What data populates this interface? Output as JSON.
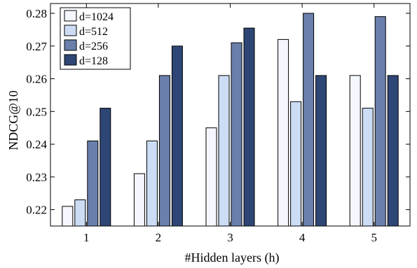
{
  "chart_data": {
    "type": "bar",
    "title": "",
    "xlabel": "#Hidden layers (h)",
    "ylabel": "NDCG@10",
    "categories": [
      "1",
      "2",
      "3",
      "4",
      "5"
    ],
    "ylim": [
      0.215,
      0.283
    ],
    "yticks": [
      "0.22",
      "0.23",
      "0.24",
      "0.25",
      "0.26",
      "0.27",
      "0.28"
    ],
    "legend_position": "top-left",
    "grid": false,
    "series": [
      {
        "name": "d=1024",
        "color": "#f4f7fd",
        "values": [
          0.221,
          0.231,
          0.245,
          0.272,
          0.261
        ]
      },
      {
        "name": "d=512",
        "color": "#cbdcf4",
        "values": [
          0.223,
          0.241,
          0.261,
          0.253,
          0.251
        ]
      },
      {
        "name": "d=256",
        "color": "#6a7fab",
        "values": [
          0.241,
          0.261,
          0.271,
          0.28,
          0.279
        ]
      },
      {
        "name": "d=128",
        "color": "#2e4675",
        "values": [
          0.251,
          0.27,
          0.2755,
          0.261,
          0.261
        ]
      }
    ]
  }
}
